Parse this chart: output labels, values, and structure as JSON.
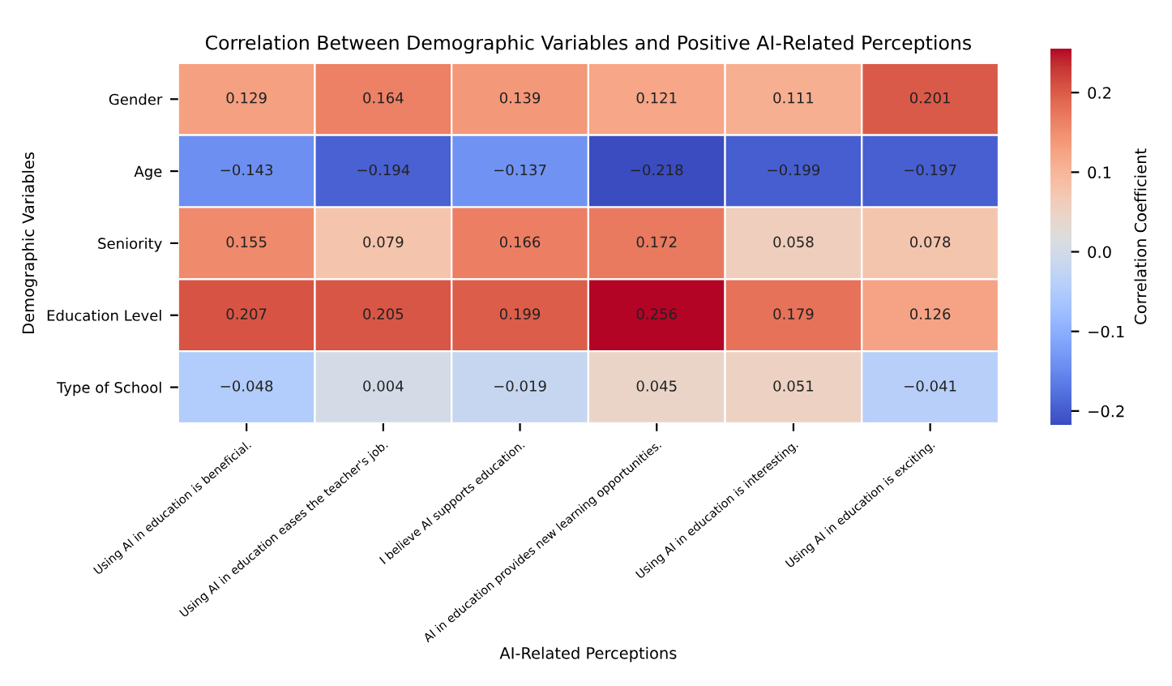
{
  "chart_data": {
    "type": "heatmap",
    "title": "Correlation Between Demographic Variables and Positive AI-Related Perceptions",
    "xlabel": "AI-Related Perceptions",
    "ylabel": "Demographic Variables",
    "clabel": "Correlation Coefficient",
    "categories": [
      "Using AI in education is beneficial.",
      "Using AI in education eases the teacher's job.",
      "I believe AI supports education.",
      "AI in education provides new learning opportunities.",
      "Using AI in education is interesting.",
      "Using AI in education is exciting."
    ],
    "y_categories": [
      "Gender",
      "Age",
      "Seniority",
      "Education Level",
      "Type of School"
    ],
    "cells": [
      [
        0.129,
        0.164,
        0.139,
        0.121,
        0.111,
        0.201
      ],
      [
        -0.143,
        -0.194,
        -0.137,
        -0.218,
        -0.199,
        -0.197
      ],
      [
        0.155,
        0.079,
        0.166,
        0.172,
        0.058,
        0.078
      ],
      [
        0.207,
        0.205,
        0.199,
        0.256,
        0.179,
        0.126
      ],
      [
        -0.048,
        0.004,
        -0.019,
        0.045,
        0.051,
        -0.041
      ]
    ],
    "clim": [
      -0.218,
      0.256
    ],
    "cticks": [
      {
        "value": -0.2,
        "label": "−0.2"
      },
      {
        "value": -0.1,
        "label": "−0.1"
      },
      {
        "value": 0.0,
        "label": "0.0"
      },
      {
        "value": 0.1,
        "label": "0.1"
      },
      {
        "value": 0.2,
        "label": "0.2"
      }
    ],
    "data_labels": true
  }
}
